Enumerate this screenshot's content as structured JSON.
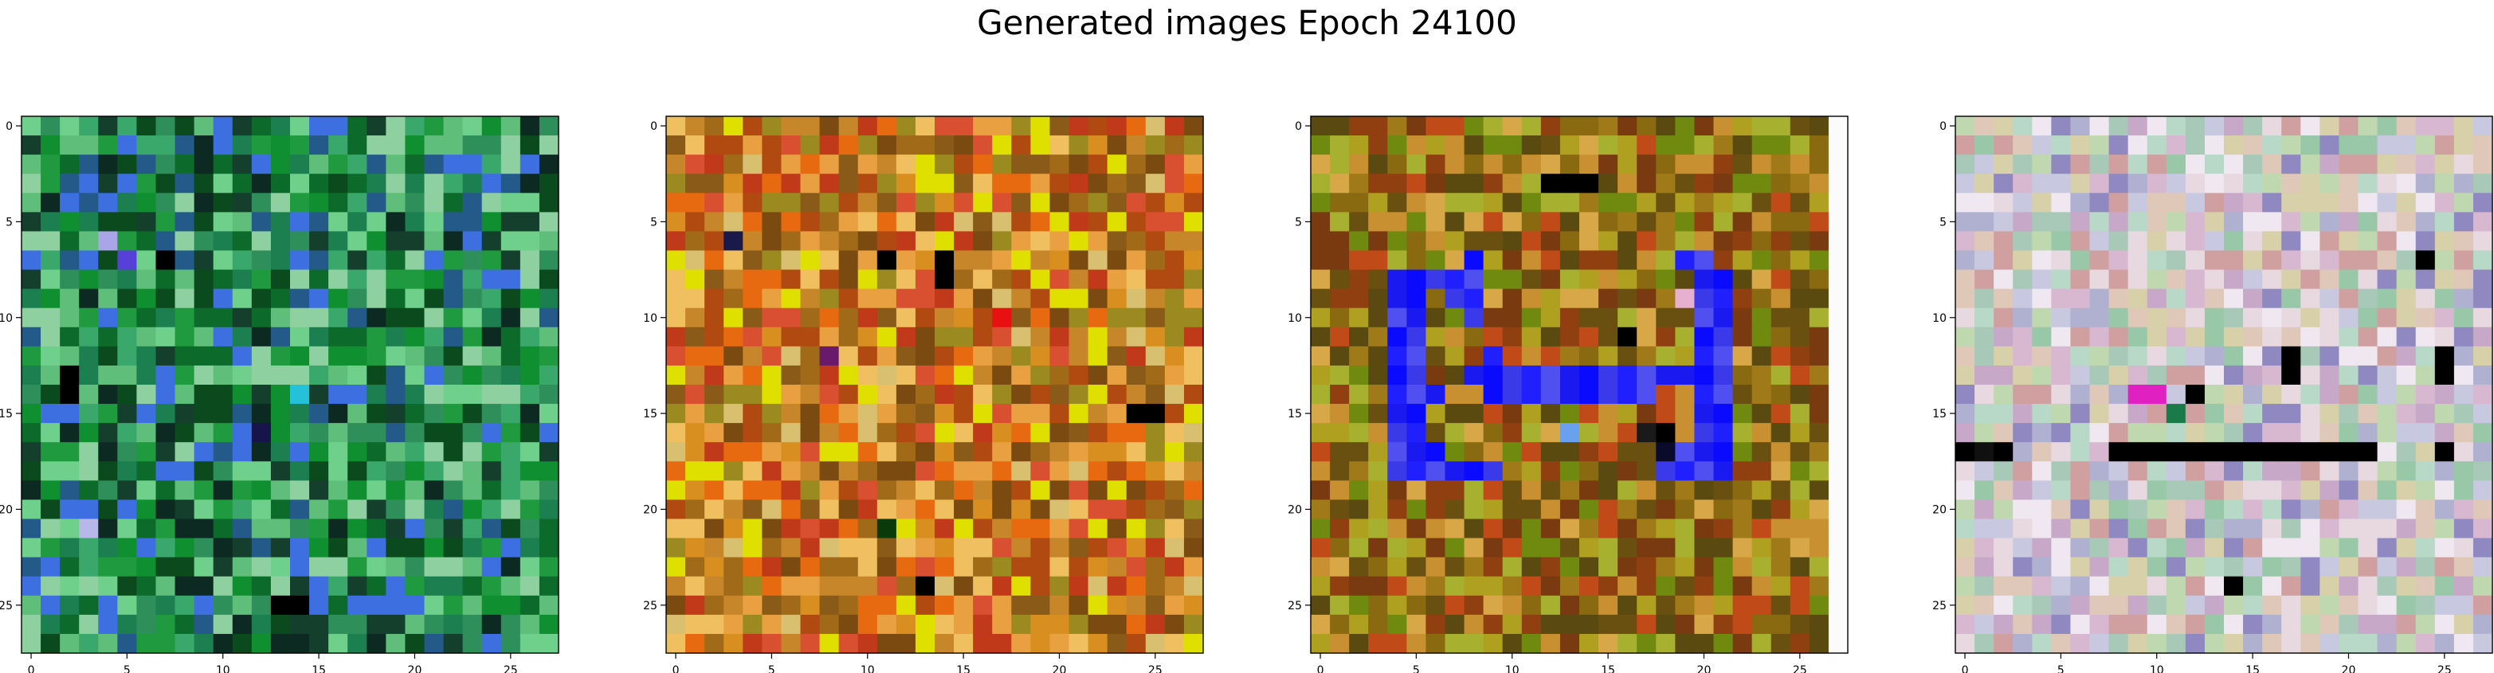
{
  "figure": {
    "title": "Generated images Epoch 24100"
  },
  "chart_data": [
    {
      "type": "heatmap",
      "grid_size": 28,
      "x_ticks": [
        "0",
        "5",
        "10",
        "15",
        "20",
        "25"
      ],
      "y_ticks": [
        "0",
        "5",
        "10",
        "15",
        "20",
        "25"
      ],
      "xlim": [
        -0.5,
        27.5
      ],
      "ylim": [
        27.5,
        -0.5
      ],
      "palette": [
        "#0c6b2a",
        "#1f9a3e",
        "#2f8f5a",
        "#0a4a1c",
        "#3aa86b",
        "#1b7f4f",
        "#5fbf7a",
        "#0d2a22",
        "#245a8a",
        "#3d6fe0",
        "#6fd08c",
        "#143f2c",
        "#0f8f2f",
        "#8fd0a0"
      ],
      "accents": [
        {
          "x": 4,
          "y": 6,
          "color": "#a9a5e8"
        },
        {
          "x": 5,
          "y": 7,
          "color": "#5640d8"
        },
        {
          "x": 7,
          "y": 7,
          "color": "#000000"
        },
        {
          "x": 2,
          "y": 13,
          "color": "#000000"
        },
        {
          "x": 2,
          "y": 14,
          "color": "#000000"
        },
        {
          "x": 14,
          "y": 14,
          "color": "#24c2d8"
        },
        {
          "x": 12,
          "y": 16,
          "color": "#17144a"
        },
        {
          "x": 13,
          "y": 25,
          "color": "#000000"
        },
        {
          "x": 14,
          "y": 25,
          "color": "#000000"
        },
        {
          "x": 3,
          "y": 21,
          "color": "#b8b8e8"
        }
      ]
    },
    {
      "type": "heatmap",
      "grid_size": 28,
      "x_ticks": [
        "0",
        "5",
        "10",
        "15",
        "20",
        "25"
      ],
      "y_ticks": [
        "0",
        "5",
        "10",
        "15",
        "20",
        "25"
      ],
      "xlim": [
        -0.5,
        27.5
      ],
      "ylim": [
        27.5,
        -0.5
      ],
      "palette": [
        "#c8862a",
        "#d98f20",
        "#a06a18",
        "#e86a10",
        "#d8c070",
        "#8a5a18",
        "#b04a10",
        "#e8a040",
        "#7a4a10",
        "#c03a1a",
        "#f0c060",
        "#9a8a20",
        "#d85030",
        "#e0e000"
      ],
      "accents": [
        {
          "x": 11,
          "y": 7,
          "color": "#000000"
        },
        {
          "x": 14,
          "y": 7,
          "color": "#000000"
        },
        {
          "x": 14,
          "y": 8,
          "color": "#000000"
        },
        {
          "x": 3,
          "y": 6,
          "color": "#1a1a4a"
        },
        {
          "x": 24,
          "y": 15,
          "color": "#000000"
        },
        {
          "x": 25,
          "y": 15,
          "color": "#000000"
        },
        {
          "x": 13,
          "y": 24,
          "color": "#000000"
        },
        {
          "x": 11,
          "y": 21,
          "color": "#0a3a0a"
        },
        {
          "x": 17,
          "y": 10,
          "color": "#e81010"
        },
        {
          "x": 8,
          "y": 12,
          "color": "#6a1a6a"
        }
      ]
    },
    {
      "type": "heatmap",
      "grid_size": 28,
      "x_ticks": [
        "0",
        "5",
        "10",
        "15",
        "20",
        "25"
      ],
      "y_ticks": [
        "0",
        "5",
        "10",
        "15",
        "20",
        "25"
      ],
      "xlim": [
        -0.5,
        27.5
      ],
      "ylim": [
        27.5,
        -0.5
      ],
      "palette": [
        "#8a6a10",
        "#a07a18",
        "#6a5010",
        "#c89030",
        "#7a3a10",
        "#b0a020",
        "#904010",
        "#a8b030",
        "#d8a848",
        "#5a4a10",
        "#c04a18",
        "#708a10"
      ],
      "blue_cells": [
        [
          4,
          8
        ],
        [
          5,
          8
        ],
        [
          6,
          8
        ],
        [
          7,
          8
        ],
        [
          8,
          8
        ],
        [
          4,
          9
        ],
        [
          5,
          9
        ],
        [
          7,
          9
        ],
        [
          8,
          9
        ],
        [
          4,
          10
        ],
        [
          5,
          10
        ],
        [
          4,
          11
        ],
        [
          5,
          11
        ],
        [
          4,
          12
        ],
        [
          5,
          12
        ],
        [
          8,
          13
        ],
        [
          9,
          13
        ],
        [
          10,
          13
        ],
        [
          11,
          13
        ],
        [
          12,
          13
        ],
        [
          13,
          13
        ],
        [
          14,
          13
        ],
        [
          15,
          13
        ],
        [
          16,
          13
        ],
        [
          17,
          13
        ],
        [
          18,
          13
        ],
        [
          4,
          13
        ],
        [
          5,
          13
        ],
        [
          4,
          14
        ],
        [
          5,
          14
        ],
        [
          6,
          14
        ],
        [
          9,
          14
        ],
        [
          10,
          14
        ],
        [
          11,
          14
        ],
        [
          12,
          14
        ],
        [
          13,
          14
        ],
        [
          14,
          14
        ],
        [
          15,
          14
        ],
        [
          16,
          14
        ],
        [
          17,
          14
        ],
        [
          4,
          15
        ],
        [
          5,
          15
        ],
        [
          4,
          16
        ],
        [
          5,
          16
        ],
        [
          4,
          17
        ],
        [
          5,
          17
        ],
        [
          6,
          17
        ],
        [
          4,
          18
        ],
        [
          5,
          18
        ],
        [
          6,
          18
        ],
        [
          7,
          18
        ],
        [
          8,
          18
        ],
        [
          9,
          18
        ],
        [
          19,
          7
        ],
        [
          20,
          7
        ],
        [
          20,
          8
        ],
        [
          21,
          8
        ],
        [
          20,
          9
        ],
        [
          21,
          9
        ],
        [
          20,
          10
        ],
        [
          21,
          10
        ],
        [
          20,
          11
        ],
        [
          21,
          11
        ],
        [
          20,
          12
        ],
        [
          21,
          12
        ],
        [
          19,
          13
        ],
        [
          20,
          13
        ],
        [
          21,
          13
        ],
        [
          20,
          14
        ],
        [
          21,
          14
        ],
        [
          20,
          15
        ],
        [
          21,
          15
        ],
        [
          20,
          16
        ],
        [
          21,
          16
        ],
        [
          19,
          17
        ],
        [
          20,
          17
        ],
        [
          21,
          17
        ],
        [
          18,
          18
        ],
        [
          19,
          18
        ],
        [
          20,
          18
        ],
        [
          21,
          18
        ],
        [
          8,
          7
        ],
        [
          8,
          10
        ],
        [
          9,
          12
        ]
      ],
      "blue_colors": [
        "#1a1af0",
        "#0a0aff",
        "#3a3ae8",
        "#2020ff",
        "#5050f0"
      ],
      "accents": [
        {
          "x": 12,
          "y": 3,
          "color": "#000000"
        },
        {
          "x": 13,
          "y": 3,
          "color": "#000000"
        },
        {
          "x": 14,
          "y": 3,
          "color": "#000000"
        },
        {
          "x": 18,
          "y": 16,
          "color": "#000000"
        },
        {
          "x": 18,
          "y": 17,
          "color": "#0a0a2a"
        },
        {
          "x": 17,
          "y": 16,
          "color": "#1a1a1a"
        },
        {
          "x": 13,
          "y": 16,
          "color": "#6aa0f0"
        },
        {
          "x": 19,
          "y": 9,
          "color": "#e8b0d0"
        },
        {
          "x": 16,
          "y": 11,
          "color": "#000000"
        }
      ],
      "blank_column": 27,
      "blank_color": "#fbfbfb"
    },
    {
      "type": "heatmap",
      "grid_size": 28,
      "x_ticks": [
        "0",
        "5",
        "10",
        "15",
        "20",
        "25"
      ],
      "y_ticks": [
        "0",
        "5",
        "10",
        "15",
        "20",
        "25"
      ],
      "xlim": [
        -0.5,
        27.5
      ],
      "ylim": [
        27.5,
        -0.5
      ],
      "palette": [
        "#d8b8d0",
        "#b8d8c8",
        "#c8a8c8",
        "#e8d8e0",
        "#a8c8b8",
        "#c8c8e0",
        "#d0a0a0",
        "#98c8a8",
        "#e0c8b8",
        "#b0b0d0",
        "#f0e8f0",
        "#c0d8b0",
        "#9088c0",
        "#d8d0a8"
      ],
      "accents": [
        {
          "x": 0,
          "y": 17,
          "color": "#000000"
        },
        {
          "x": 1,
          "y": 17,
          "color": "#101010"
        },
        {
          "x": 2,
          "y": 17,
          "color": "#000000"
        },
        {
          "x": 8,
          "y": 17,
          "color": "#000000"
        },
        {
          "x": 9,
          "y": 17,
          "color": "#000000"
        },
        {
          "x": 10,
          "y": 17,
          "color": "#000000"
        },
        {
          "x": 11,
          "y": 17,
          "color": "#000000"
        },
        {
          "x": 12,
          "y": 17,
          "color": "#000000"
        },
        {
          "x": 13,
          "y": 17,
          "color": "#000000"
        },
        {
          "x": 14,
          "y": 17,
          "color": "#000000"
        },
        {
          "x": 15,
          "y": 17,
          "color": "#000000"
        },
        {
          "x": 16,
          "y": 17,
          "color": "#000000"
        },
        {
          "x": 17,
          "y": 17,
          "color": "#000000"
        },
        {
          "x": 18,
          "y": 17,
          "color": "#000000"
        },
        {
          "x": 19,
          "y": 17,
          "color": "#000000"
        },
        {
          "x": 20,
          "y": 17,
          "color": "#000000"
        },
        {
          "x": 21,
          "y": 17,
          "color": "#000000"
        },
        {
          "x": 25,
          "y": 17,
          "color": "#000000"
        },
        {
          "x": 17,
          "y": 12,
          "color": "#000000"
        },
        {
          "x": 17,
          "y": 13,
          "color": "#000000"
        },
        {
          "x": 25,
          "y": 12,
          "color": "#000000"
        },
        {
          "x": 25,
          "y": 13,
          "color": "#000000"
        },
        {
          "x": 9,
          "y": 14,
          "color": "#e020c0"
        },
        {
          "x": 10,
          "y": 14,
          "color": "#e020c0"
        },
        {
          "x": 14,
          "y": 24,
          "color": "#000000"
        },
        {
          "x": 12,
          "y": 14,
          "color": "#000000"
        },
        {
          "x": 24,
          "y": 7,
          "color": "#000000"
        },
        {
          "x": 11,
          "y": 15,
          "color": "#1a7a4a"
        }
      ]
    }
  ]
}
